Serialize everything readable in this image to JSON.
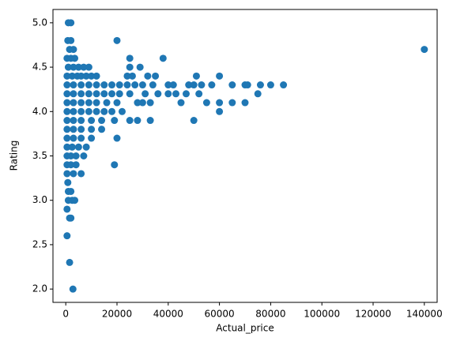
{
  "chart_data": {
    "type": "scatter",
    "color": "#1f77b4",
    "x_label": "Actual_price",
    "y_label": "Rating",
    "xlim": [
      -5000,
      145000
    ],
    "ylim": [
      1.85,
      5.15
    ],
    "xticks": [
      0,
      20000,
      40000,
      60000,
      80000,
      100000,
      120000,
      140000
    ],
    "yticks": [
      {
        "value": 2,
        "label": "2.0"
      },
      2.5,
      {
        "value": 3,
        "label": "3.0"
      },
      3.5,
      {
        "value": 4,
        "label": "4.0"
      },
      4.5,
      {
        "value": 5,
        "label": "5.0"
      }
    ],
    "x": [
      1000,
      2000,
      800,
      2000,
      1500,
      3000,
      500,
      2000,
      3500,
      1000,
      3000,
      5000,
      7000,
      9000,
      500,
      2500,
      4500,
      6000,
      8000,
      10000,
      12000,
      500,
      3000,
      6000,
      9000,
      12000,
      15000,
      18000,
      21000,
      24000,
      27000,
      30000,
      500,
      3000,
      6000,
      9000,
      12000,
      15000,
      18000,
      21000,
      25000,
      500,
      3000,
      6000,
      9000,
      12000,
      16000,
      20000,
      500,
      3000,
      6000,
      9000,
      12000,
      15000,
      18000,
      22000,
      500,
      3000,
      6000,
      10000,
      14000,
      19000,
      500,
      3000,
      6000,
      10000,
      14000,
      500,
      3000,
      6000,
      10000,
      20000,
      500,
      2500,
      5000,
      8000,
      500,
      2000,
      4000,
      7000,
      500,
      2000,
      4000,
      19000,
      500,
      3000,
      6000,
      800,
      1000,
      2000,
      1000,
      2500,
      3500,
      500,
      1500,
      2000,
      500,
      1500,
      2800,
      20000,
      25000,
      25000,
      29000,
      38000,
      24000,
      26000,
      32000,
      35000,
      34000,
      40000,
      42000,
      48000,
      50000,
      53000,
      57000,
      65000,
      70000,
      71000,
      76000,
      80000,
      85000,
      51000,
      60000,
      31000,
      36000,
      40000,
      43000,
      47000,
      52000,
      75000,
      30000,
      45000,
      55000,
      60000,
      65000,
      70000,
      60000,
      25000,
      28000,
      33000,
      50000,
      140000,
      28000,
      33000
    ],
    "y": [
      5.0,
      5.0,
      4.8,
      4.8,
      4.7,
      4.7,
      4.6,
      4.6,
      4.6,
      4.5,
      4.5,
      4.5,
      4.5,
      4.5,
      4.4,
      4.4,
      4.4,
      4.4,
      4.4,
      4.4,
      4.4,
      4.3,
      4.3,
      4.3,
      4.3,
      4.3,
      4.3,
      4.3,
      4.3,
      4.3,
      4.3,
      4.3,
      4.2,
      4.2,
      4.2,
      4.2,
      4.2,
      4.2,
      4.2,
      4.2,
      4.2,
      4.1,
      4.1,
      4.1,
      4.1,
      4.1,
      4.1,
      4.1,
      4.0,
      4.0,
      4.0,
      4.0,
      4.0,
      4.0,
      4.0,
      4.0,
      3.9,
      3.9,
      3.9,
      3.9,
      3.9,
      3.9,
      3.8,
      3.8,
      3.8,
      3.8,
      3.8,
      3.7,
      3.7,
      3.7,
      3.7,
      3.7,
      3.6,
      3.6,
      3.6,
      3.6,
      3.5,
      3.5,
      3.5,
      3.5,
      3.4,
      3.4,
      3.4,
      3.4,
      3.3,
      3.3,
      3.3,
      3.2,
      3.1,
      3.1,
      3.0,
      3.0,
      3.0,
      2.9,
      2.8,
      2.8,
      2.6,
      2.3,
      2.0,
      4.8,
      4.6,
      4.5,
      4.5,
      4.6,
      4.4,
      4.4,
      4.4,
      4.4,
      4.3,
      4.3,
      4.3,
      4.3,
      4.3,
      4.3,
      4.3,
      4.3,
      4.3,
      4.3,
      4.3,
      4.3,
      4.3,
      4.4,
      4.4,
      4.2,
      4.2,
      4.2,
      4.2,
      4.2,
      4.2,
      4.2,
      4.1,
      4.1,
      4.1,
      4.1,
      4.1,
      4.1,
      4.0,
      3.9,
      3.9,
      3.9,
      3.9,
      4.7,
      4.1,
      4.1
    ]
  }
}
